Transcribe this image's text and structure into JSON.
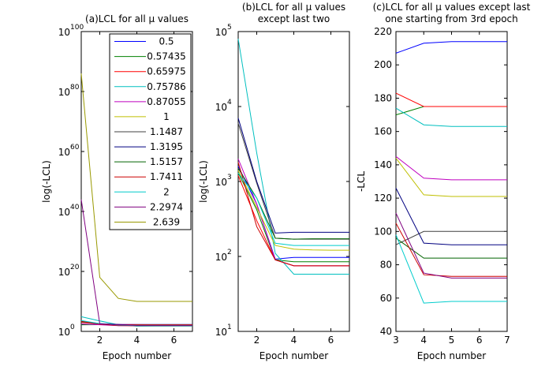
{
  "figure": {
    "background": "#ffffff"
  },
  "series_colors": [
    "#0000FF",
    "#008000",
    "#FF0000",
    "#00BFBF",
    "#BF00BF",
    "#BFBF00",
    "#404040",
    "#000080",
    "#006400",
    "#CC0000",
    "#00CCCC",
    "#800080",
    "#999900"
  ],
  "chart_data": [
    {
      "type": "line",
      "title": "(a)LCL for all μ values",
      "xlabel": "Epoch number",
      "ylabel": "log(-LCL)",
      "yscale": "log",
      "xlim": [
        1,
        7
      ],
      "ylim_exponent": [
        0,
        100
      ],
      "x_ticks": [
        "2",
        "4",
        "6"
      ],
      "y_ticks": [
        {
          "base": "10",
          "exp": "0"
        },
        {
          "base": "10",
          "exp": "20"
        },
        {
          "base": "10",
          "exp": "40"
        },
        {
          "base": "10",
          "exp": "60"
        },
        {
          "base": "10",
          "exp": "80"
        },
        {
          "base": "10",
          "exp": "100"
        }
      ],
      "legend": {
        "placement": "top-right",
        "entries": [
          "0.5",
          "0.57435",
          "0.65975",
          "0.75786",
          "0.87055",
          "1",
          "1.1487",
          "1.3195",
          "1.5157",
          "1.7411",
          "2",
          "2.2974",
          "2.639"
        ]
      },
      "x": [
        1,
        2,
        3,
        4,
        5,
        6,
        7
      ],
      "series": [
        {
          "values_log10": [
            2.3,
            2.33,
            2.32,
            2.32,
            2.32,
            2.32,
            2.32
          ]
        },
        {
          "values_log10": [
            2.2,
            2.24,
            2.22,
            2.22,
            2.22,
            2.22,
            2.22
          ]
        },
        {
          "values_log10": [
            3.0,
            2.5,
            2.3,
            2.25,
            2.24,
            2.24,
            2.24
          ]
        },
        {
          "values_log10": [
            4.9,
            3.5,
            2.2,
            1.75,
            1.76,
            1.76,
            1.76
          ]
        },
        {
          "values_log10": [
            2.5,
            2.2,
            1.9,
            1.95,
            1.95,
            1.95,
            1.95
          ]
        },
        {
          "values_log10": [
            3.5,
            2.5,
            2.1,
            2.08,
            2.08,
            2.08,
            2.08
          ]
        },
        {
          "values_log10": [
            3.2,
            2.5,
            2.2,
            1.93,
            1.93,
            1.93,
            1.93
          ]
        },
        {
          "values_log10": [
            3.4,
            2.6,
            2.3,
            2.0,
            2.0,
            2.0,
            2.0
          ]
        },
        {
          "values_log10": [
            3.3,
            2.5,
            2.0,
            2.0,
            2.0,
            2.0,
            2.0
          ]
        },
        {
          "values_log10": [
            3.4,
            2.4,
            1.95,
            1.86,
            1.86,
            1.86,
            1.86
          ]
        },
        {
          "values_log10": [
            3.6,
            2.6,
            2.1,
            1.9,
            1.9,
            1.9,
            1.9
          ]
        },
        {
          "values_log10": [
            44,
            2.5,
            2.2,
            2.0,
            2.0,
            2.0,
            2.0
          ]
        },
        {
          "values_log10": [
            86,
            18,
            11,
            10,
            10,
            10,
            10
          ]
        }
      ]
    },
    {
      "type": "line",
      "title": "(b)LCL for all μ values",
      "title_line2": "except last two",
      "xlabel": "Epoch number",
      "ylabel": "log(-LCL)",
      "yscale": "log",
      "xlim": [
        1,
        7
      ],
      "ylim_exponent": [
        1,
        5
      ],
      "x_ticks": [
        "2",
        "4",
        "6"
      ],
      "y_ticks": [
        {
          "base": "10",
          "exp": "1"
        },
        {
          "base": "10",
          "exp": "2"
        },
        {
          "base": "10",
          "exp": "3"
        },
        {
          "base": "10",
          "exp": "4"
        },
        {
          "base": "10",
          "exp": "5"
        }
      ],
      "x": [
        1,
        2,
        3,
        4,
        5,
        6,
        7
      ],
      "series": [
        {
          "values": [
            1600,
            500,
            92,
            97,
            97,
            97,
            97
          ]
        },
        {
          "values": [
            1300,
            420,
            90,
            85,
            85,
            85,
            85
          ]
        },
        {
          "values": [
            1200,
            300,
            90,
            75,
            75,
            75,
            75
          ]
        },
        {
          "values": [
            80000,
            2400,
            110,
            58,
            58,
            58,
            58
          ]
        },
        {
          "values": [
            2000,
            500,
            90,
            75,
            75,
            75,
            75
          ]
        },
        {
          "values": [
            1400,
            450,
            140,
            125,
            122,
            121,
            121
          ]
        },
        {
          "values": [
            6000,
            950,
            175,
            170,
            170,
            170,
            170
          ]
        },
        {
          "values": [
            7000,
            1000,
            205,
            210,
            210,
            210,
            210
          ]
        },
        {
          "values": [
            1500,
            600,
            175,
            170,
            172,
            172,
            172
          ]
        },
        {
          "values": [
            1800,
            250,
            90,
            75,
            75,
            75,
            75
          ]
        },
        {
          "values": [
            1300,
            600,
            150,
            140,
            140,
            140,
            140
          ]
        }
      ]
    },
    {
      "type": "line",
      "title": "(c)LCL for all μ values except last",
      "title_line2": "one starting from 3rd epoch",
      "xlabel": "Epoch number",
      "ylabel": "-LCL",
      "yscale": "linear",
      "xlim": [
        3,
        7
      ],
      "ylim": [
        40,
        220
      ],
      "x_ticks": [
        "3",
        "4",
        "5",
        "6",
        "7"
      ],
      "y_ticks": [
        "40",
        "60",
        "80",
        "100",
        "120",
        "140",
        "160",
        "180",
        "200",
        "220"
      ],
      "x": [
        3,
        4,
        5,
        6,
        7
      ],
      "series": [
        {
          "values": [
            207,
            213,
            214,
            214,
            214
          ]
        },
        {
          "values": [
            170,
            175,
            175,
            175,
            175
          ]
        },
        {
          "values": [
            183,
            175,
            175,
            175,
            175
          ]
        },
        {
          "values": [
            174,
            164,
            163,
            163,
            163
          ]
        },
        {
          "values": [
            145,
            132,
            131,
            131,
            131
          ]
        },
        {
          "values": [
            144,
            122,
            121,
            121,
            121
          ]
        },
        {
          "values": [
            92,
            100,
            100,
            100,
            100
          ]
        },
        {
          "values": [
            126,
            93,
            92,
            92,
            92
          ]
        },
        {
          "values": [
            96,
            84,
            84,
            84,
            84
          ]
        },
        {
          "values": [
            105,
            74,
            73,
            73,
            73
          ]
        },
        {
          "values": [
            98,
            57,
            58,
            58,
            58
          ]
        },
        {
          "values": [
            111,
            75,
            72,
            72,
            72
          ]
        }
      ]
    }
  ]
}
